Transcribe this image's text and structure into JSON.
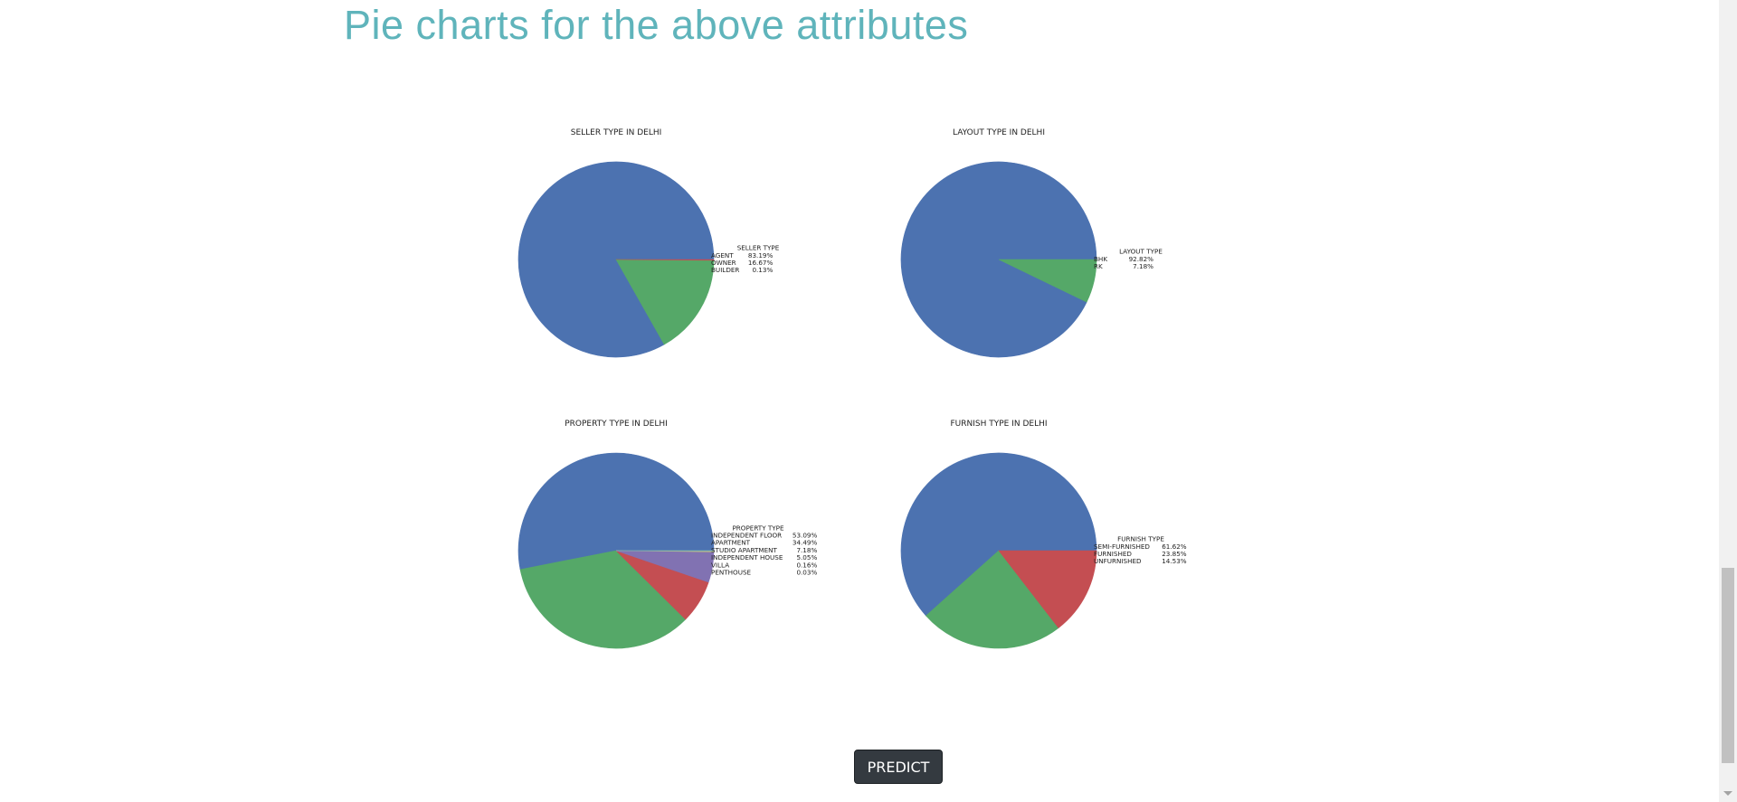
{
  "page_title": "Pie charts for the above attributes",
  "predict_button_label": "PREDICT",
  "colors": {
    "title": "#5fb4bb",
    "button_bg": "#343a40"
  },
  "chart_data": [
    {
      "type": "pie",
      "title": "SELLER TYPE IN DELHI",
      "legend_title": "SELLER TYPE",
      "legend_placement": "right",
      "slices": [
        {
          "label": "AGENT",
          "pct_label": "83.19%",
          "value": 83.19,
          "color": "#4c72b0"
        },
        {
          "label": "OWNER",
          "pct_label": "16.67%",
          "value": 16.67,
          "color": "#55a868"
        },
        {
          "label": "BUILDER",
          "pct_label": "0.13%",
          "value": 0.13,
          "color": "#c44e52"
        }
      ]
    },
    {
      "type": "pie",
      "title": "LAYOUT TYPE IN DELHI",
      "legend_title": "LAYOUT TYPE",
      "legend_placement": "right",
      "slices": [
        {
          "label": "BHK",
          "pct_label": "92.82%",
          "value": 92.82,
          "color": "#4c72b0"
        },
        {
          "label": "RK",
          "pct_label": "7.18%",
          "value": 7.18,
          "color": "#55a868"
        }
      ]
    },
    {
      "type": "pie",
      "title": "PROPERTY TYPE IN DELHI",
      "legend_title": "PROPERTY TYPE",
      "legend_placement": "right",
      "slices": [
        {
          "label": "INDEPENDENT FLOOR",
          "pct_label": "53.09%",
          "value": 53.09,
          "color": "#4c72b0"
        },
        {
          "label": "APARTMENT",
          "pct_label": "34.49%",
          "value": 34.49,
          "color": "#55a868"
        },
        {
          "label": "STUDIO APARTMENT",
          "pct_label": "7.18%",
          "value": 7.18,
          "color": "#c44e52"
        },
        {
          "label": "INDEPENDENT HOUSE",
          "pct_label": "5.05%",
          "value": 5.05,
          "color": "#8172b2"
        },
        {
          "label": "VILLA",
          "pct_label": "0.16%",
          "value": 0.16,
          "color": "#ccb974"
        },
        {
          "label": "PENTHOUSE",
          "pct_label": "0.03%",
          "value": 0.03,
          "color": "#64b5cd"
        }
      ]
    },
    {
      "type": "pie",
      "title": "FURNISH TYPE IN DELHI",
      "legend_title": "FURNISH TYPE",
      "legend_placement": "right",
      "slices": [
        {
          "label": "SEMI-FURNISHED",
          "pct_label": "61.62%",
          "value": 61.62,
          "color": "#4c72b0"
        },
        {
          "label": "FURNISHED",
          "pct_label": "23.85%",
          "value": 23.85,
          "color": "#55a868"
        },
        {
          "label": "UNFURNISHED",
          "pct_label": "14.53%",
          "value": 14.53,
          "color": "#c44e52"
        }
      ]
    }
  ]
}
